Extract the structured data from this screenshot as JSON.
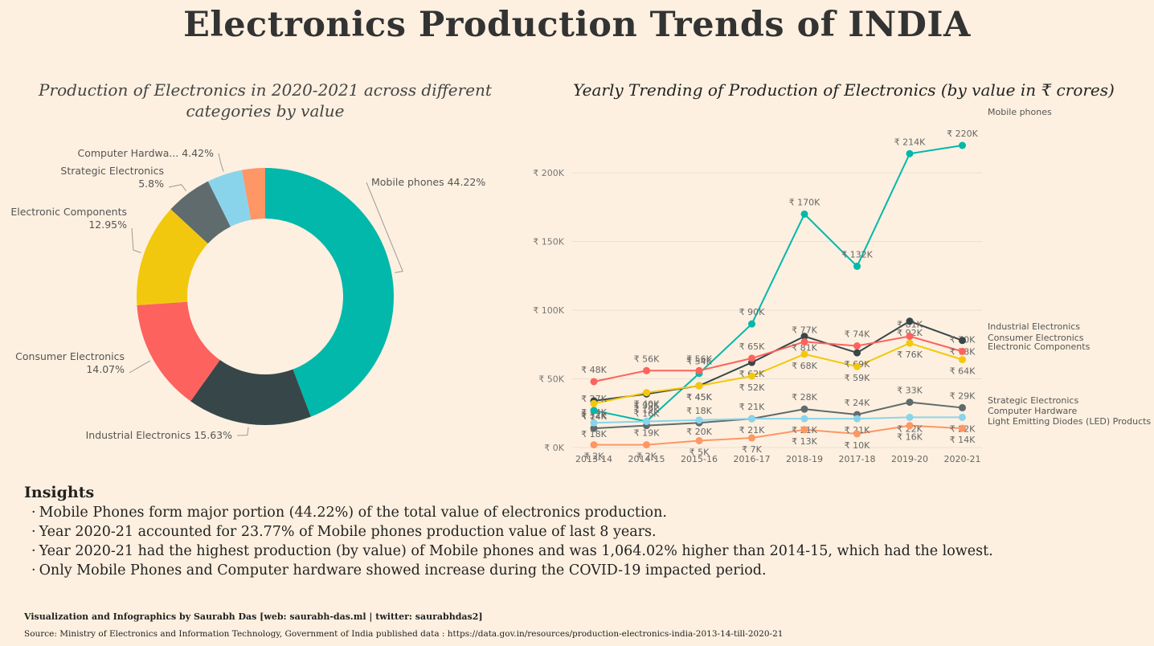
{
  "header": {
    "title": "Electronics Production Trends of INDIA"
  },
  "chart_data": [
    {
      "type": "pie",
      "variant": "donut",
      "title": "Production of Electronics in 2020-2021 across different categories by value",
      "slices": [
        {
          "label": "Mobile phones",
          "value": 44.22,
          "display": "Mobile phones 44.22%",
          "color": "#01b8aa"
        },
        {
          "label": "Industrial Electronics",
          "value": 15.63,
          "display": "Industrial Electronics 15.63%",
          "color": "#374649"
        },
        {
          "label": "Consumer Electronics",
          "value": 14.07,
          "display_lines": [
            "Consumer Electronics",
            "14.07%"
          ],
          "color": "#fd625e"
        },
        {
          "label": "Electronic Components",
          "value": 12.95,
          "display_lines": [
            "Electronic Components",
            "12.95%"
          ],
          "color": "#f2c80f"
        },
        {
          "label": "Strategic Electronics",
          "value": 5.8,
          "display_lines": [
            "Strategic Electronics",
            "5.8%"
          ],
          "color": "#5f6b6d"
        },
        {
          "label": "Computer Hardware",
          "value": 4.42,
          "display": "Computer Hardwa... 4.42%",
          "color": "#8ad4eb"
        },
        {
          "label": "Light Emitting Diodes (LED) Products",
          "value": 2.91,
          "color": "#fe9666"
        }
      ]
    },
    {
      "type": "line",
      "title": "Yearly Trending of Production of Electronics (by value in ₹ crores)",
      "categories": [
        "2013-14",
        "2014-15",
        "2015-16",
        "2016-17",
        "2018-19",
        "2017-18",
        "2019-20",
        "2020-21"
      ],
      "ylim": [
        0,
        220000
      ],
      "yticks": [
        {
          "value": 0,
          "label": "₹ 0K"
        },
        {
          "value": 50000,
          "label": "₹ 50K"
        },
        {
          "value": 100000,
          "label": "₹ 100K"
        },
        {
          "value": 150000,
          "label": "₹ 150K"
        },
        {
          "value": 200000,
          "label": "₹ 200K"
        }
      ],
      "series": [
        {
          "name": "Mobile phones",
          "color": "#01b8aa",
          "values": [
            27000,
            19000,
            54000,
            90000,
            170000,
            132000,
            214000,
            220000
          ],
          "labels": [
            "₹ 27K",
            "₹ 19K",
            "₹ 54K",
            "₹ 90K",
            "₹ 170K",
            "₹ 132K",
            "₹ 214K",
            "₹ 220K"
          ]
        },
        {
          "name": "Industrial Electronics",
          "color": "#374649",
          "values": [
            34000,
            39000,
            45000,
            62000,
            81000,
            69000,
            92000,
            78000
          ],
          "labels": [
            "₹ 34K",
            "₹ 39K",
            "₹ 45K",
            "₹ 62K",
            "₹ 81K",
            "₹ 69K",
            "₹ 92K",
            "₹ 78K"
          ]
        },
        {
          "name": "Consumer Electronics",
          "color": "#fd625e",
          "values": [
            48000,
            56000,
            56000,
            65000,
            77000,
            74000,
            81000,
            70000
          ],
          "labels": [
            "₹ 48K",
            "₹ 56K",
            "₹ 56K",
            "₹ 65K",
            "₹ 77K",
            "₹ 74K",
            "₹ 81K",
            "₹ 70K"
          ]
        },
        {
          "name": "Electronic Components",
          "color": "#f2c80f",
          "values": [
            32000,
            40000,
            45000,
            52000,
            68000,
            59000,
            76000,
            64000
          ],
          "labels": [
            "₹ 32K",
            "₹ 40K",
            "₹ 45K",
            "₹ 52K",
            "₹ 68K",
            "₹ 59K",
            "₹ 76K",
            "₹ 64K"
          ]
        },
        {
          "name": "Strategic Electronics",
          "color": "#5f6b6d",
          "values": [
            14000,
            16000,
            18000,
            21000,
            28000,
            24000,
            33000,
            29000
          ],
          "labels": [
            "₹ 14K",
            "₹ 16K",
            "₹ 18K",
            "₹ 21K",
            "₹ 28K",
            "₹ 24K",
            "₹ 33K",
            "₹ 29K"
          ]
        },
        {
          "name": "Computer Hardware",
          "color": "#8ad4eb",
          "values": [
            18000,
            19000,
            20000,
            21000,
            21000,
            21000,
            22000,
            22000
          ],
          "labels": [
            "₹ 18K",
            "₹ 19K",
            "₹ 20K",
            "₹ 21K",
            "₹ 21K",
            "₹ 21K",
            "₹ 22K",
            "₹ 22K"
          ]
        },
        {
          "name": "Light Emitting Diodes (LED) Products",
          "color": "#fe9666",
          "values": [
            2000,
            2000,
            5000,
            7000,
            13000,
            10000,
            16000,
            14000
          ],
          "labels": [
            "₹ 2K",
            "₹ 2K",
            "₹ 5K",
            "₹ 7K",
            "₹ 13K",
            "₹ 10K",
            "₹ 16K",
            "₹ 14K"
          ]
        }
      ]
    }
  ],
  "insights": {
    "heading": "Insights",
    "items": [
      "Mobile Phones form major portion (44.22%) of the total value of electronics production.",
      "Year 2020-21 accounted for 23.77% of Mobile phones production value of last 8 years.",
      "Year 2020-21 had the highest production (by value) of Mobile phones and was 1,064.02% higher than 2014-15, which had the lowest.",
      "Only Mobile Phones and Computer hardware showed increase during the COVID-19 impacted period."
    ]
  },
  "footer": {
    "credit": "Visualization and Infographics by Saurabh Das [web: saurabh-das.ml | twitter: saurabhdas2]",
    "source": "Source: Ministry of Electronics and Information Technology, Government of India published data : https://data.gov.in/resources/production-electronics-india-2013-14-till-2020-21"
  }
}
